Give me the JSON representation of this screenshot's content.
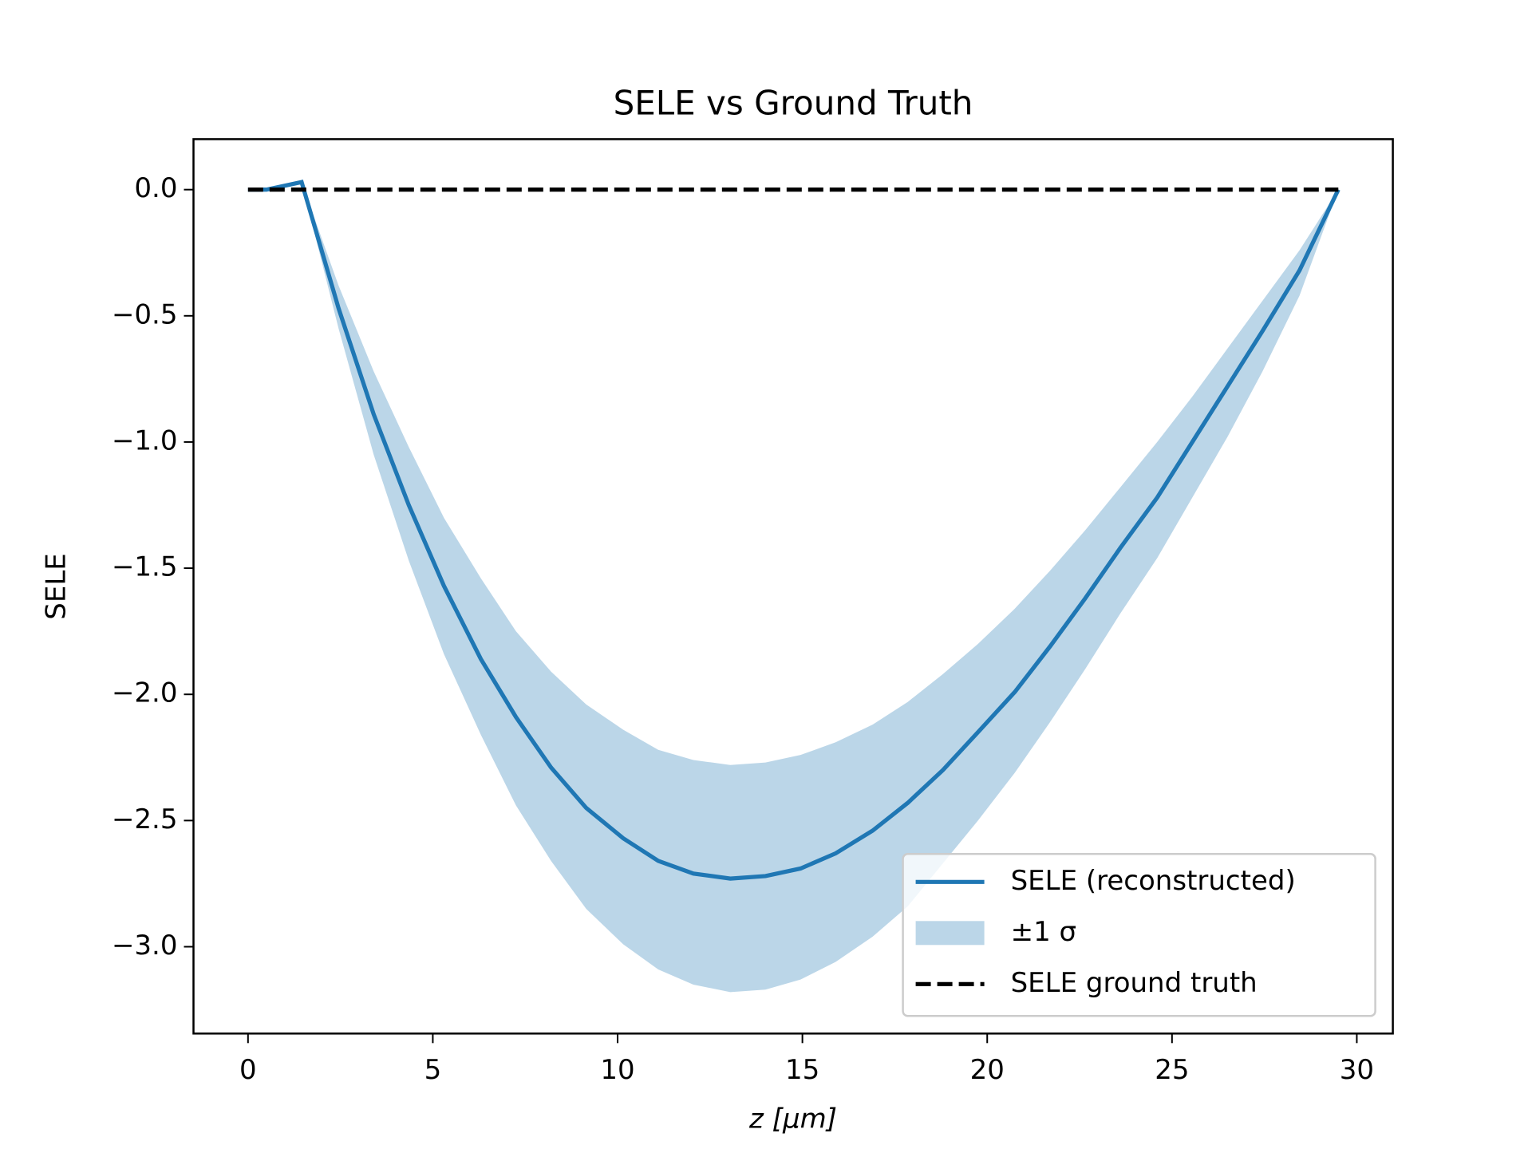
{
  "chart_data": {
    "type": "line",
    "title": "SELE vs Ground Truth",
    "x_label": "z [μm]",
    "y_label": "SELE",
    "xlim": [
      -1.475,
      30.975
    ],
    "ylim": [
      -3.344,
      0.2
    ],
    "xticks": [
      0,
      5,
      10,
      15,
      20,
      25,
      30
    ],
    "yticks": [
      {
        "value": 0,
        "label": "0.0"
      },
      {
        "value": -0.5,
        "label": "−0.5"
      },
      {
        "value": -1,
        "label": "−1.0"
      },
      {
        "value": -1.5,
        "label": "−1.5"
      },
      {
        "value": -2,
        "label": "−2.0"
      },
      {
        "value": -2.5,
        "label": "−2.5"
      },
      {
        "value": -3,
        "label": "−3.0"
      }
    ],
    "grid": false,
    "legend_position": "lower right",
    "series": [
      {
        "name": "SELE (reconstructed)",
        "color": "#1f77b4",
        "style": "solid",
        "x": [
          0,
          0.5,
          1.45,
          2.45,
          3.4,
          4.35,
          5.3,
          6.3,
          7.25,
          8.2,
          9.15,
          10.15,
          11.1,
          12.05,
          13.05,
          14.0,
          14.95,
          15.9,
          16.9,
          17.85,
          18.8,
          19.75,
          20.75,
          21.7,
          22.65,
          23.6,
          24.6,
          25.55,
          26.5,
          27.45,
          28.45,
          29.5
        ],
        "values": [
          0,
          0,
          0.03,
          -0.47,
          -0.89,
          -1.25,
          -1.57,
          -1.86,
          -2.09,
          -2.29,
          -2.45,
          -2.57,
          -2.66,
          -2.71,
          -2.73,
          -2.72,
          -2.69,
          -2.63,
          -2.54,
          -2.43,
          -2.3,
          -2.15,
          -1.99,
          -1.81,
          -1.62,
          -1.42,
          -1.22,
          -1.0,
          -0.78,
          -0.56,
          -0.32,
          0
        ]
      },
      {
        "name": "SELE ground truth",
        "color": "#000000",
        "style": "dashed",
        "x": [
          0,
          29.5
        ],
        "values": [
          0,
          0
        ]
      }
    ],
    "band": {
      "name": "±1 σ",
      "color": "#1f77b4",
      "opacity": 0.3,
      "x": [
        1.45,
        2.45,
        3.4,
        4.35,
        5.3,
        6.3,
        7.25,
        8.2,
        9.15,
        10.15,
        11.1,
        12.05,
        13.05,
        14.0,
        14.95,
        15.9,
        16.9,
        17.85,
        18.8,
        19.75,
        20.75,
        21.7,
        22.65,
        23.6,
        24.6,
        25.55,
        26.5,
        27.45,
        28.45,
        29.5
      ],
      "upper": [
        0.03,
        -0.38,
        -0.72,
        -1.02,
        -1.3,
        -1.54,
        -1.75,
        -1.91,
        -2.04,
        -2.14,
        -2.22,
        -2.26,
        -2.28,
        -2.27,
        -2.24,
        -2.19,
        -2.12,
        -2.03,
        -1.92,
        -1.8,
        -1.66,
        -1.51,
        -1.35,
        -1.18,
        -1.0,
        -0.82,
        -0.63,
        -0.44,
        -0.24,
        0
      ],
      "lower": [
        0.03,
        -0.55,
        -1.05,
        -1.47,
        -1.84,
        -2.16,
        -2.44,
        -2.66,
        -2.85,
        -2.99,
        -3.09,
        -3.15,
        -3.18,
        -3.17,
        -3.13,
        -3.06,
        -2.96,
        -2.84,
        -2.67,
        -2.5,
        -2.31,
        -2.11,
        -1.9,
        -1.68,
        -1.46,
        -1.22,
        -0.98,
        -0.72,
        -0.42,
        0
      ]
    }
  }
}
